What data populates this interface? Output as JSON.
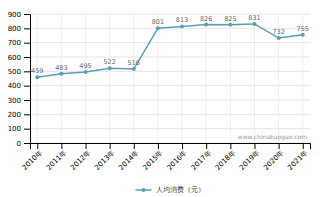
{
  "chart_data": {
    "type": "line",
    "categories": [
      "2010年",
      "2011年",
      "2012年",
      "2013年",
      "2014年",
      "2015年",
      "2016年",
      "2017年",
      "2018年",
      "2019年",
      "2020年",
      "2021年"
    ],
    "series": [
      {
        "name": "人均消费（元）",
        "color": "#5a9eb5",
        "marker": "circle",
        "values": [
          459,
          483,
          495,
          522,
          516,
          801,
          813,
          826,
          825,
          831,
          732,
          755
        ]
      }
    ],
    "ylim": [
      0,
      900
    ],
    "yticks": [
      0,
      100,
      200,
      300,
      400,
      500,
      600,
      700,
      800,
      900
    ],
    "grid": true,
    "data_labels": true,
    "legend": "bottom",
    "annotations": [
      "www.chinabaogao.com"
    ]
  }
}
